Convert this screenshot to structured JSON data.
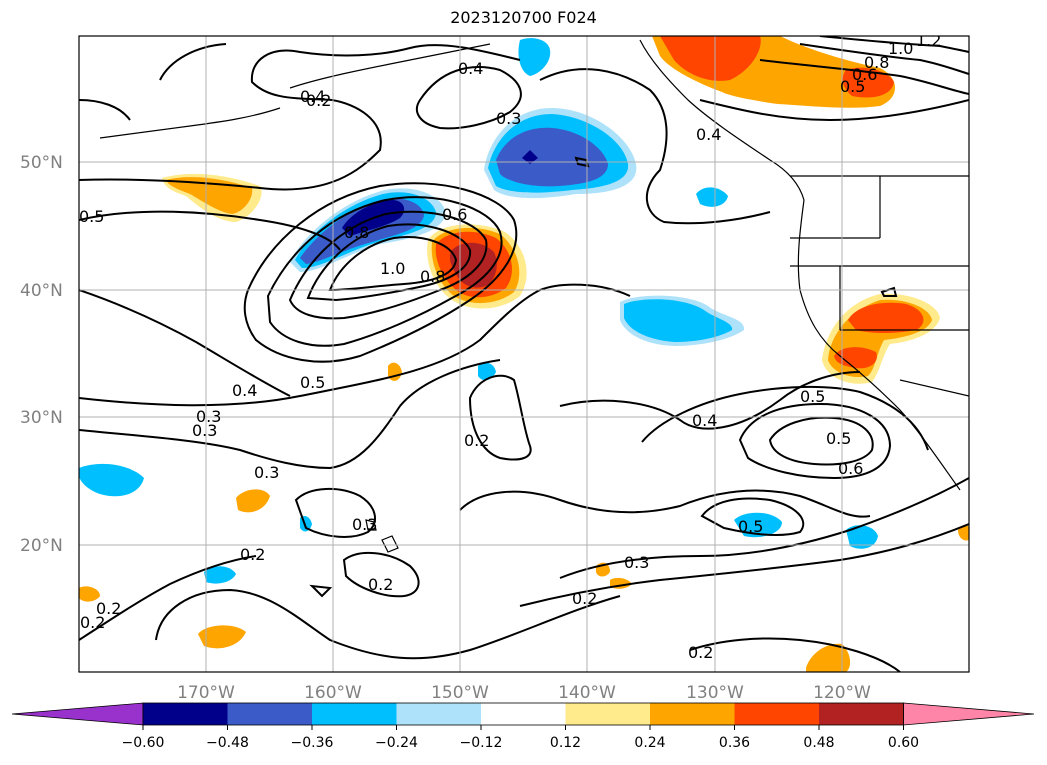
{
  "title": "2023120700 F024",
  "map": {
    "lat_labels": [
      "50°N",
      "40°N",
      "30°N",
      "20°N"
    ],
    "lon_labels": [
      "170°W",
      "160°W",
      "150°W",
      "140°W",
      "130°W",
      "120°W"
    ],
    "contour_labels": [
      "0.2",
      "0.4",
      "0.3",
      "0.5",
      "0.5",
      "0.6",
      "0.8",
      "1.0",
      "0.8",
      "0.4",
      "0.3",
      "0.2",
      "0.3",
      "0.4",
      "0.5",
      "0.2",
      "0.3",
      "0.2",
      "0.2",
      "0.3",
      "0.2",
      "0.2",
      "0.4",
      "0.5",
      "0.6",
      "0.5",
      "1.0",
      "1.2",
      "0.8",
      "0.6",
      "0.5",
      "0.4",
      "0.2",
      "0.3"
    ]
  },
  "colorbar": {
    "colors": [
      "#9932CC",
      "#00008B",
      "#3A5BC8",
      "#00BFFF",
      "#AEE2FA",
      "#FFFFFF",
      "#FFEA8C",
      "#FFA500",
      "#FF4500",
      "#B22222",
      "#FF85A8"
    ],
    "tick_labels": [
      "−0.60",
      "−0.48",
      "−0.36",
      "−0.24",
      "−0.12",
      "0.12",
      "0.24",
      "0.36",
      "0.48",
      "0.60"
    ]
  }
}
